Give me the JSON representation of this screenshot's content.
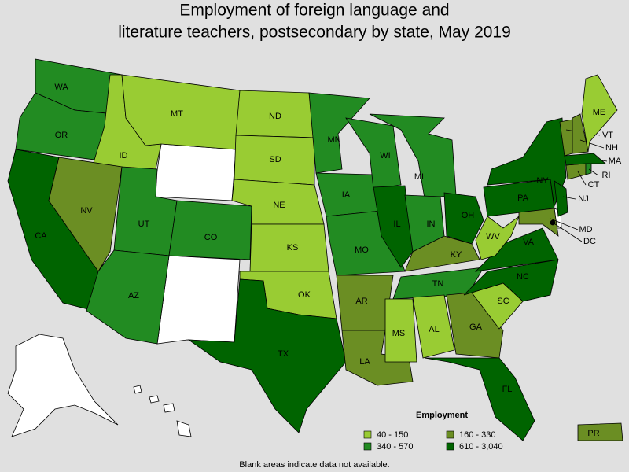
{
  "title": [
    "Employment of foreign language and",
    "literature teachers, postsecondary by state, May 2019"
  ],
  "legend": {
    "title": "Employment",
    "items": [
      {
        "label": "40 - 150",
        "color": "#99cc33"
      },
      {
        "label": "160 - 330",
        "color": "#6b8e23"
      },
      {
        "label": "340 - 570",
        "color": "#228b22"
      },
      {
        "label": "610 - 3,040",
        "color": "#006400"
      }
    ]
  },
  "states": [
    {
      "label": "WA",
      "color": "#228b22"
    },
    {
      "label": "OR",
      "color": "#228b22"
    },
    {
      "label": "CA",
      "color": "#006400"
    },
    {
      "label": "ID",
      "color": "#99cc33"
    },
    {
      "label": "MT",
      "color": "#99cc33"
    },
    {
      "label": "NV",
      "color": "#6b8e23"
    },
    {
      "label": "UT",
      "color": "#228b22"
    },
    {
      "label": "AZ",
      "color": "#228b22"
    },
    {
      "label": "CO",
      "color": "#228b22"
    },
    {
      "label": "ND",
      "color": "#99cc33"
    },
    {
      "label": "SD",
      "color": "#99cc33"
    },
    {
      "label": "NE",
      "color": "#99cc33"
    },
    {
      "label": "KS",
      "color": "#99cc33"
    },
    {
      "label": "OK",
      "color": "#99cc33"
    },
    {
      "label": "TX",
      "color": "#006400"
    },
    {
      "label": "MN",
      "color": "#228b22"
    },
    {
      "label": "IA",
      "color": "#228b22"
    },
    {
      "label": "MO",
      "color": "#228b22"
    },
    {
      "label": "AR",
      "color": "#6b8e23"
    },
    {
      "label": "LA",
      "color": "#6b8e23"
    },
    {
      "label": "WI",
      "color": "#228b22"
    },
    {
      "label": "IL",
      "color": "#006400"
    },
    {
      "label": "MI",
      "color": "#228b22"
    },
    {
      "label": "IN",
      "color": "#228b22"
    },
    {
      "label": "OH",
      "color": "#006400"
    },
    {
      "label": "KY",
      "color": "#6b8e23"
    },
    {
      "label": "TN",
      "color": "#228b22"
    },
    {
      "label": "MS",
      "color": "#99cc33"
    },
    {
      "label": "AL",
      "color": "#99cc33"
    },
    {
      "label": "GA",
      "color": "#6b8e23"
    },
    {
      "label": "FL",
      "color": "#006400"
    },
    {
      "label": "SC",
      "color": "#99cc33"
    },
    {
      "label": "NC",
      "color": "#006400"
    },
    {
      "label": "VA",
      "color": "#006400"
    },
    {
      "label": "WV",
      "color": "#99cc33"
    },
    {
      "label": "PA",
      "color": "#006400"
    },
    {
      "label": "NY",
      "color": "#006400"
    },
    {
      "label": "MD",
      "color": "#6b8e23"
    },
    {
      "label": "DC",
      "color": "#000000"
    },
    {
      "label": "NJ",
      "color": "#006400"
    },
    {
      "label": "CT",
      "color": "#6b8e23"
    },
    {
      "label": "RI",
      "color": "#228b22"
    },
    {
      "label": "MA",
      "color": "#006400"
    },
    {
      "label": "VT",
      "color": "#6b8e23"
    },
    {
      "label": "NH",
      "color": "#6b8e23"
    },
    {
      "label": "ME",
      "color": "#99cc33"
    },
    {
      "label": "PR",
      "color": "#6b8e23"
    }
  ],
  "note": "Blank areas indicate data not available."
}
